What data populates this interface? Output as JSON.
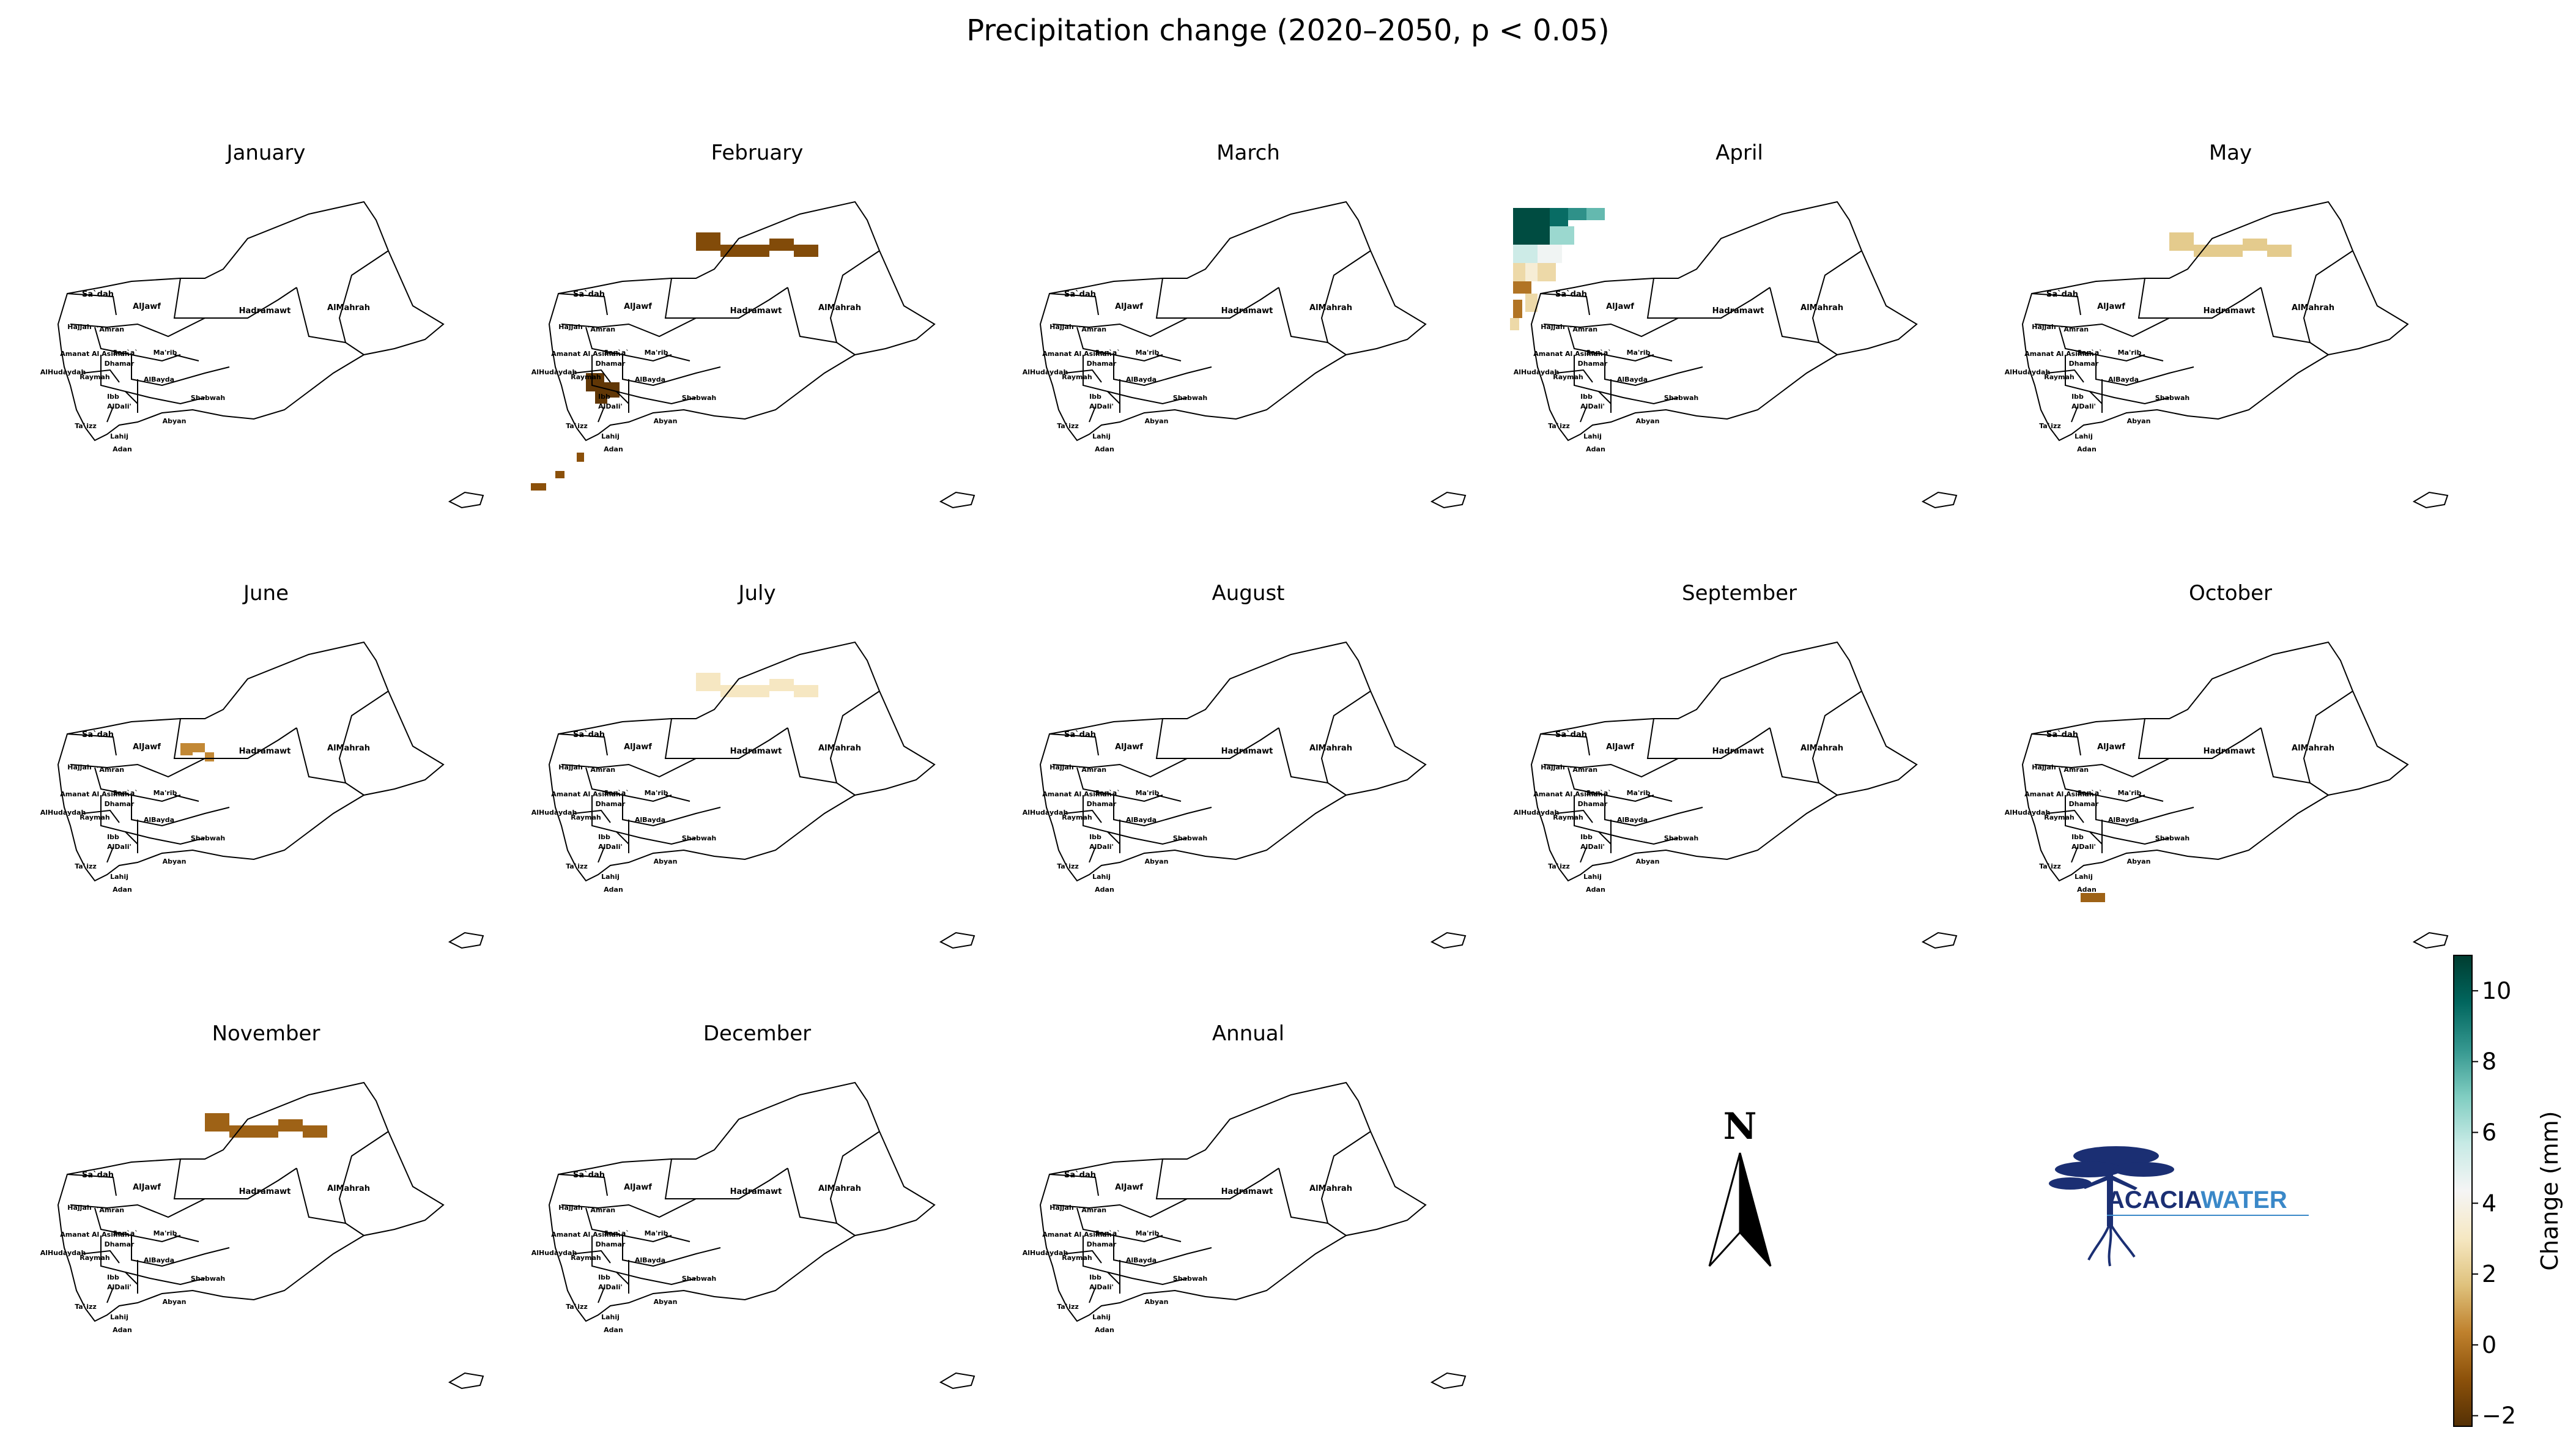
{
  "title": "Precipitation change (2020–2050, p < 0.05)",
  "regions": [
    "Sa`dah",
    "AlJawf",
    "Hadramawt",
    "AlMahrah",
    "Hajjah",
    "`Amran",
    "Amanat Al Asimah",
    "San`a`",
    "Ma'rib",
    "AlHudaydah",
    "Raymah",
    "Dhamar",
    "AlBayda",
    "Shabwah",
    "Ibb",
    "AlDali'",
    "Ta`izz",
    "Lahij",
    "Abyan",
    "Adan"
  ],
  "panels": [
    {
      "label": "January",
      "cells": []
    },
    {
      "label": "February",
      "cells": [
        {
          "area": "north",
          "value": -1.2
        },
        {
          "area": "west",
          "value": -2.0
        },
        {
          "area": "southwest",
          "value": -1.0
        }
      ]
    },
    {
      "label": "March",
      "cells": []
    },
    {
      "label": "April",
      "cells": [
        {
          "area": "northwest",
          "value": 10.5
        },
        {
          "area": "west-coast",
          "value": 1.5
        }
      ]
    },
    {
      "label": "May",
      "cells": [
        {
          "area": "north",
          "value": 2.0
        }
      ]
    },
    {
      "label": "June",
      "cells": [
        {
          "area": "north-west",
          "value": 0.5
        }
      ]
    },
    {
      "label": "July",
      "cells": [
        {
          "area": "north",
          "value": 3.0
        }
      ]
    },
    {
      "label": "August",
      "cells": []
    },
    {
      "label": "September",
      "cells": []
    },
    {
      "label": "October",
      "cells": [
        {
          "area": "south",
          "value": -0.5
        }
      ]
    },
    {
      "label": "November",
      "cells": [
        {
          "area": "north",
          "value": -0.5
        }
      ]
    },
    {
      "label": "December",
      "cells": []
    },
    {
      "label": "Annual",
      "cells": []
    }
  ],
  "north_arrow": {
    "letter": "N"
  },
  "logo": {
    "word1": "ACACIA",
    "word2": "WATER",
    "color1": "#1b2f73",
    "color2": "#3a88c8"
  },
  "colorbar": {
    "label": "Change (mm)",
    "min": -2.3,
    "max": 11,
    "ticks": [
      {
        "value": 10,
        "label": "10"
      },
      {
        "value": 8,
        "label": "8"
      },
      {
        "value": 6,
        "label": "6"
      },
      {
        "value": 4,
        "label": "4"
      },
      {
        "value": 2,
        "label": "2"
      },
      {
        "value": 0,
        "label": "0"
      },
      {
        "value": -2,
        "label": "−2"
      }
    ],
    "colormap": "BrBG"
  }
}
